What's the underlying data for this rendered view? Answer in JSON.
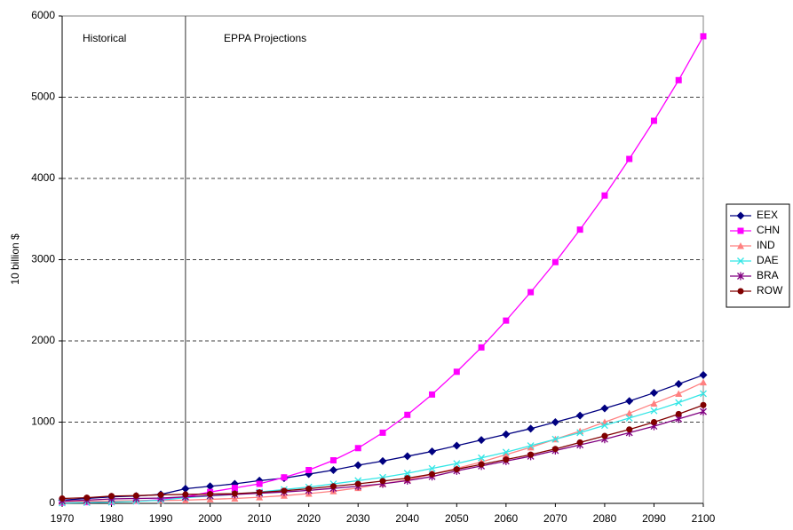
{
  "chart_data": {
    "type": "line",
    "y_label": "10 billion $",
    "annotations": [
      "Historical",
      "EPPA Projections"
    ],
    "divider_x": 1995,
    "x": [
      1970,
      1975,
      1980,
      1985,
      1990,
      1995,
      2000,
      2005,
      2010,
      2015,
      2020,
      2025,
      2030,
      2035,
      2040,
      2045,
      2050,
      2055,
      2060,
      2065,
      2070,
      2075,
      2080,
      2085,
      2090,
      2095,
      2100
    ],
    "series": [
      {
        "name": "EEX",
        "color": "#000080",
        "marker": "diamond",
        "values": [
          40,
          60,
          80,
          90,
          110,
          180,
          210,
          240,
          280,
          310,
          360,
          410,
          470,
          520,
          580,
          640,
          710,
          780,
          850,
          920,
          1000,
          1080,
          1170,
          1260,
          1360,
          1470,
          1580
        ]
      },
      {
        "name": "CHN",
        "color": "#ff00ff",
        "marker": "square",
        "values": [
          10,
          15,
          20,
          30,
          45,
          80,
          140,
          190,
          240,
          320,
          410,
          530,
          680,
          870,
          1090,
          1340,
          1620,
          1920,
          2250,
          2600,
          2970,
          3370,
          3790,
          4240,
          4710,
          5210,
          5750
        ]
      },
      {
        "name": "IND",
        "color": "#ff8080",
        "marker": "triangle",
        "values": [
          20,
          25,
          30,
          33,
          36,
          40,
          50,
          60,
          75,
          95,
          120,
          150,
          190,
          240,
          290,
          360,
          430,
          510,
          600,
          690,
          790,
          890,
          1000,
          1110,
          1230,
          1350,
          1490
        ]
      },
      {
        "name": "DAE",
        "color": "#33e6e6",
        "marker": "x",
        "values": [
          5,
          10,
          15,
          25,
          40,
          70,
          90,
          110,
          140,
          170,
          200,
          240,
          280,
          320,
          370,
          430,
          490,
          560,
          630,
          710,
          790,
          870,
          960,
          1050,
          1140,
          1240,
          1350
        ]
      },
      {
        "name": "BRA",
        "color": "#800080",
        "marker": "star",
        "values": [
          30,
          40,
          55,
          60,
          65,
          80,
          95,
          110,
          125,
          140,
          160,
          185,
          210,
          240,
          280,
          330,
          400,
          460,
          520,
          580,
          650,
          720,
          790,
          870,
          950,
          1040,
          1130
        ]
      },
      {
        "name": "ROW",
        "color": "#800000",
        "marker": "circle",
        "values": [
          60,
          70,
          90,
          95,
          105,
          110,
          115,
          120,
          135,
          155,
          180,
          210,
          240,
          275,
          310,
          360,
          420,
          480,
          540,
          600,
          670,
          750,
          830,
          910,
          1000,
          1100,
          1210
        ]
      }
    ],
    "xlim": [
      1970,
      2100
    ],
    "xticks": [
      1970,
      1980,
      1990,
      2000,
      2010,
      2020,
      2030,
      2040,
      2050,
      2060,
      2070,
      2080,
      2090,
      2100
    ],
    "ylim": [
      0,
      6000
    ],
    "yticks": [
      0,
      1000,
      2000,
      3000,
      4000,
      5000,
      6000
    ],
    "grid": true,
    "legend": "right"
  }
}
